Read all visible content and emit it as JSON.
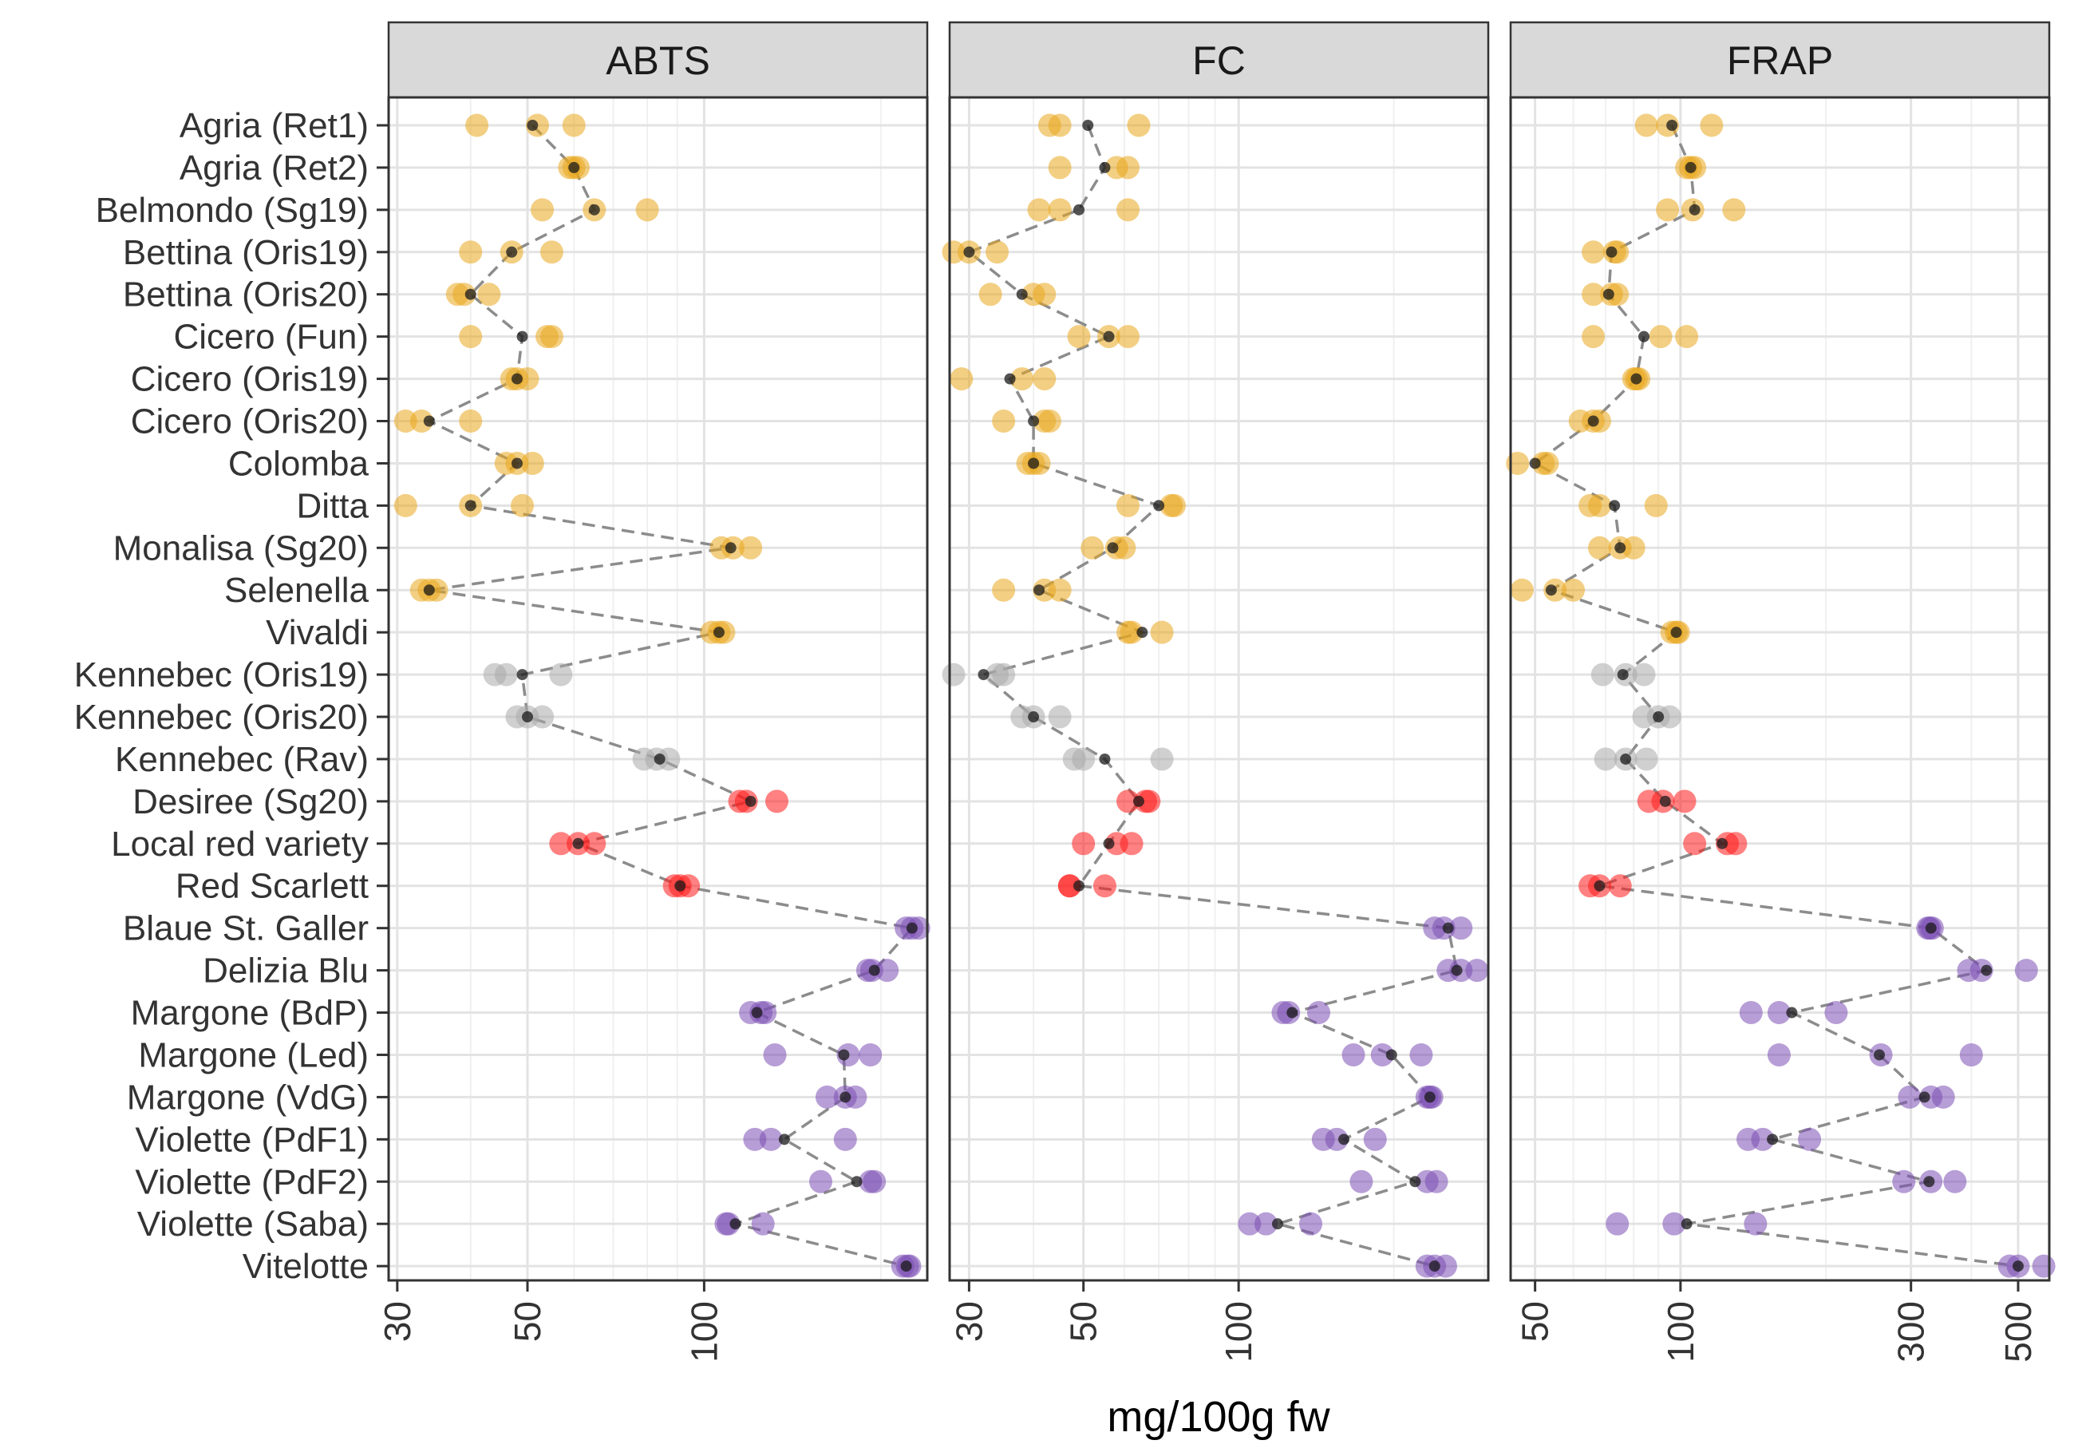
{
  "chart_data": {
    "type": "scatter",
    "x_axis_title": "mg/100g fw",
    "x_scale": "log10",
    "colors": {
      "yellow": "#E9A71D",
      "grey": "#A9A9A9",
      "red": "#FF1A1A",
      "purple": "#7B4FB4",
      "mean": "#1a1a1a",
      "line": "#8c8c8c"
    },
    "rows": [
      {
        "label": "Agria (Ret1)",
        "color": "yellow"
      },
      {
        "label": "Agria (Ret2)",
        "color": "yellow"
      },
      {
        "label": "Belmondo (Sg19)",
        "color": "yellow"
      },
      {
        "label": "Bettina (Oris19)",
        "color": "yellow"
      },
      {
        "label": "Bettina (Oris20)",
        "color": "yellow"
      },
      {
        "label": "Cicero (Fun)",
        "color": "yellow"
      },
      {
        "label": "Cicero (Oris19)",
        "color": "yellow"
      },
      {
        "label": "Cicero (Oris20)",
        "color": "yellow"
      },
      {
        "label": "Colomba",
        "color": "yellow"
      },
      {
        "label": "Ditta",
        "color": "yellow"
      },
      {
        "label": "Monalisa (Sg20)",
        "color": "yellow"
      },
      {
        "label": "Selenella",
        "color": "yellow"
      },
      {
        "label": "Vivaldi",
        "color": "yellow"
      },
      {
        "label": "Kennebec (Oris19)",
        "color": "grey"
      },
      {
        "label": "Kennebec (Oris20)",
        "color": "grey"
      },
      {
        "label": "Kennebec (Rav)",
        "color": "grey"
      },
      {
        "label": "Desiree (Sg20)",
        "color": "red"
      },
      {
        "label": "Local red variety",
        "color": "red"
      },
      {
        "label": "Red Scarlett",
        "color": "red"
      },
      {
        "label": "Blaue St. Galler",
        "color": "purple"
      },
      {
        "label": "Delizia Blu",
        "color": "purple"
      },
      {
        "label": "Margone (BdP)",
        "color": "purple"
      },
      {
        "label": "Margone (Led)",
        "color": "purple"
      },
      {
        "label": "Margone (VdG)",
        "color": "purple"
      },
      {
        "label": "Violette (PdF1)",
        "color": "purple"
      },
      {
        "label": "Violette (PdF2)",
        "color": "purple"
      },
      {
        "label": "Violette (Saba)",
        "color": "purple"
      },
      {
        "label": "Vitelotte",
        "color": "purple"
      }
    ],
    "panels": [
      {
        "title": "ABTS",
        "xlim": [
          29,
          240
        ],
        "ticks": [
          {
            "v": 30,
            "label": "30"
          },
          {
            "v": 50,
            "label": "50"
          },
          {
            "v": 100,
            "label": "100"
          }
        ],
        "series": [
          {
            "points": [
              41,
              52,
              60
            ],
            "mean": 51
          },
          {
            "points": [
              59,
              61,
              60
            ],
            "mean": 60
          },
          {
            "points": [
              53,
              65,
              80
            ],
            "mean": 65
          },
          {
            "points": [
              40,
              55,
              47
            ],
            "mean": 47
          },
          {
            "points": [
              38,
              39,
              43
            ],
            "mean": 40
          },
          {
            "points": [
              40,
              54,
              55
            ],
            "mean": 49
          },
          {
            "points": [
              48,
              50,
              47
            ],
            "mean": 48
          },
          {
            "points": [
              31,
              33,
              40
            ],
            "mean": 34
          },
          {
            "points": [
              46,
              48,
              51
            ],
            "mean": 48
          },
          {
            "points": [
              31,
              40,
              49
            ],
            "mean": 40
          },
          {
            "points": [
              107,
              112,
              120
            ],
            "mean": 111
          },
          {
            "points": [
              33,
              35,
              34
            ],
            "mean": 34
          },
          {
            "points": [
              103,
              108,
              106
            ],
            "mean": 106
          },
          {
            "points": [
              44,
              46,
              57
            ],
            "mean": 49
          },
          {
            "points": [
              48,
              50,
              53
            ],
            "mean": 50
          },
          {
            "points": [
              79,
              87,
              83
            ],
            "mean": 84
          },
          {
            "points": [
              115,
              118,
              133
            ],
            "mean": 120
          },
          {
            "points": [
              57,
              61,
              65
            ],
            "mean": 61
          },
          {
            "points": [
              89,
              91,
              94
            ],
            "mean": 91
          },
          {
            "points": [
              221,
              232,
              226
            ],
            "mean": 226
          },
          {
            "points": [
              190,
              193,
              205
            ],
            "mean": 195
          },
          {
            "points": [
              120,
              125,
              127
            ],
            "mean": 123
          },
          {
            "points": [
              132,
              192,
              176
            ],
            "mean": 173
          },
          {
            "points": [
              162,
              174,
              181
            ],
            "mean": 174
          },
          {
            "points": [
              122,
              130,
              174
            ],
            "mean": 137
          },
          {
            "points": [
              158,
              192,
              195
            ],
            "mean": 182
          },
          {
            "points": [
              109,
              110,
              126
            ],
            "mean": 113
          },
          {
            "points": [
              218,
              222,
              224
            ],
            "mean": 221
          }
        ]
      },
      {
        "title": "FC",
        "xlim": [
          27.5,
          305
        ],
        "ticks": [
          {
            "v": 30,
            "label": "30"
          },
          {
            "v": 50,
            "label": "50"
          },
          {
            "v": 100,
            "label": "100"
          }
        ],
        "series": [
          {
            "points": [
              43,
              45,
              64
            ],
            "mean": 51
          },
          {
            "points": [
              45,
              58,
              61
            ],
            "mean": 55
          },
          {
            "points": [
              41,
              45,
              61
            ],
            "mean": 49
          },
          {
            "points": [
              28,
              30,
              34
            ],
            "mean": 30
          },
          {
            "points": [
              33,
              40,
              42
            ],
            "mean": 38
          },
          {
            "points": [
              49,
              56,
              61
            ],
            "mean": 56
          },
          {
            "points": [
              29,
              38,
              42
            ],
            "mean": 36
          },
          {
            "points": [
              35,
              42,
              43
            ],
            "mean": 40
          },
          {
            "points": [
              39,
              40,
              41
            ],
            "mean": 40
          },
          {
            "points": [
              61,
              75,
              74
            ],
            "mean": 70
          },
          {
            "points": [
              52,
              58,
              60
            ],
            "mean": 57
          },
          {
            "points": [
              35,
              42,
              45
            ],
            "mean": 41
          },
          {
            "points": [
              61,
              62,
              71
            ],
            "mean": 65
          },
          {
            "points": [
              28,
              34,
              35
            ],
            "mean": 32
          },
          {
            "points": [
              38,
              40,
              45
            ],
            "mean": 40
          },
          {
            "points": [
              48,
              50,
              71
            ],
            "mean": 55
          },
          {
            "points": [
              61,
              66,
              67
            ],
            "mean": 64
          },
          {
            "points": [
              50,
              58,
              62
            ],
            "mean": 56
          },
          {
            "points": [
              47,
              47,
              55
            ],
            "mean": 49
          },
          {
            "points": [
              240,
              250,
              270
            ],
            "mean": 255
          },
          {
            "points": [
              255,
              270,
              290
            ],
            "mean": 265
          },
          {
            "points": [
              122,
              125,
              143
            ],
            "mean": 127
          },
          {
            "points": [
              167,
              226,
              190
            ],
            "mean": 198
          },
          {
            "points": [
              232,
              237,
              235
            ],
            "mean": 235
          },
          {
            "points": [
              146,
              155,
              184
            ],
            "mean": 160
          },
          {
            "points": [
              173,
              232,
              242
            ],
            "mean": 220
          },
          {
            "points": [
              105,
              113,
              138
            ],
            "mean": 119
          },
          {
            "points": [
              232,
              252,
              240
            ],
            "mean": 240
          }
        ]
      },
      {
        "title": "FRAP",
        "xlim": [
          44.5,
          580
        ],
        "ticks": [
          {
            "v": 50,
            "label": "50"
          },
          {
            "v": 100,
            "label": "100"
          },
          {
            "v": 300,
            "label": "300"
          },
          {
            "v": 500,
            "label": "500"
          }
        ],
        "series": [
          {
            "points": [
              85,
              94,
              116
            ],
            "mean": 96
          },
          {
            "points": [
              103,
              107,
              105
            ],
            "mean": 105
          },
          {
            "points": [
              94,
              106,
              129
            ],
            "mean": 107
          },
          {
            "points": [
              66,
              73,
              74
            ],
            "mean": 72
          },
          {
            "points": [
              66,
              72,
              74
            ],
            "mean": 71
          },
          {
            "points": [
              66,
              91,
              103
            ],
            "mean": 84
          },
          {
            "points": [
              80,
              82,
              81
            ],
            "mean": 81
          },
          {
            "points": [
              62,
              66,
              68
            ],
            "mean": 66
          },
          {
            "points": [
              46,
              52,
              53
            ],
            "mean": 50
          },
          {
            "points": [
              65,
              68,
              89
            ],
            "mean": 73
          },
          {
            "points": [
              68,
              75,
              80
            ],
            "mean": 75
          },
          {
            "points": [
              47,
              55,
              60
            ],
            "mean": 54
          },
          {
            "points": [
              96,
              98,
              99
            ],
            "mean": 98
          },
          {
            "points": [
              69,
              77,
              84
            ],
            "mean": 76
          },
          {
            "points": [
              84,
              90,
              95
            ],
            "mean": 90
          },
          {
            "points": [
              70,
              77,
              85
            ],
            "mean": 77
          },
          {
            "points": [
              86,
              92,
              102
            ],
            "mean": 93
          },
          {
            "points": [
              107,
              125,
              130
            ],
            "mean": 122
          },
          {
            "points": [
              65,
              68,
              75
            ],
            "mean": 68
          },
          {
            "points": [
              325,
              332,
              328
            ],
            "mean": 330
          },
          {
            "points": [
              395,
              420,
              520
            ],
            "mean": 430
          },
          {
            "points": [
              140,
              160,
              210
            ],
            "mean": 170
          },
          {
            "points": [
              160,
              260,
              400
            ],
            "mean": 258
          },
          {
            "points": [
              298,
              330,
              350
            ],
            "mean": 320
          },
          {
            "points": [
              138,
              148,
              185
            ],
            "mean": 155
          },
          {
            "points": [
              290,
              330,
              370
            ],
            "mean": 327
          },
          {
            "points": [
              74,
              97,
              143
            ],
            "mean": 103
          },
          {
            "points": [
              480,
              500,
              565
            ],
            "mean": 500
          }
        ]
      }
    ]
  }
}
